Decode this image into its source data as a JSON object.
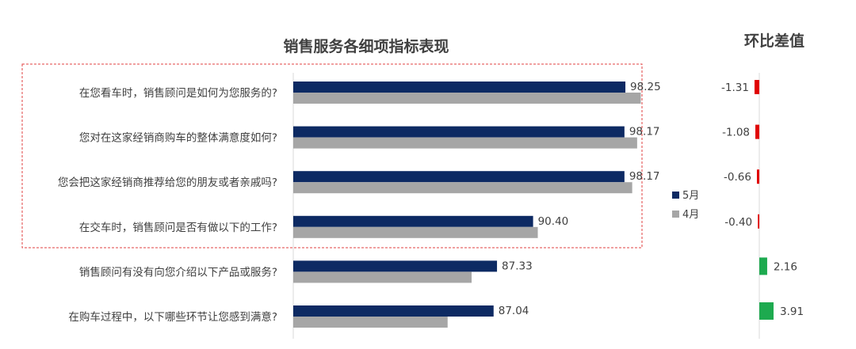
{
  "chart_data": [
    {
      "type": "bar",
      "orientation": "horizontal",
      "title": "销售服务各细项指标表现",
      "categories": [
        "在您看车时，销售顾问是如何为您服务的?",
        "您对在这家经销商购车的整体满意度如何?",
        "您会把这家经销商推荐给您的朋友或者亲戚吗?",
        "在交车时，销售顾问是否有做以下的工作?",
        "销售顾问有没有向您介绍以下产品或服务?",
        "在购车过程中，以下哪些环节让您感到满意?"
      ],
      "series": [
        {
          "name": "5月",
          "color": "#0d2a63",
          "values": [
            98.25,
            98.17,
            98.17,
            90.4,
            87.33,
            87.04
          ],
          "labels": [
            "98.25",
            "98.17",
            "98.17",
            "90.40",
            "87.33",
            "87.04"
          ]
        },
        {
          "name": "4月",
          "color": "#a6a6a6",
          "values": [
            99.56,
            99.25,
            98.83,
            90.8,
            85.17,
            83.13
          ]
        }
      ],
      "xlim": [
        70,
        100
      ],
      "legend": "right",
      "highlight_rows": [
        0,
        3
      ]
    },
    {
      "type": "bar",
      "orientation": "horizontal",
      "title": "环比差值",
      "categories": [
        "在您看车时，销售顾问是如何为您服务的?",
        "您对在这家经销商购车的整体满意度如何?",
        "您会把这家经销商推荐给您的朋友或者亲戚吗?",
        "在交车时，销售顾问是否有做以下的工作?",
        "销售顾问有没有向您介绍以下产品或服务?",
        "在购车过程中，以下哪些环节让您感到满意?"
      ],
      "values": [
        -1.31,
        -1.08,
        -0.66,
        -0.4,
        2.16,
        3.91
      ],
      "labels": [
        "-1.31",
        "-1.08",
        "-0.66",
        "-0.40",
        "2.16",
        "3.91"
      ],
      "negative_color": "#e00000",
      "positive_color": "#1daa4f"
    }
  ]
}
